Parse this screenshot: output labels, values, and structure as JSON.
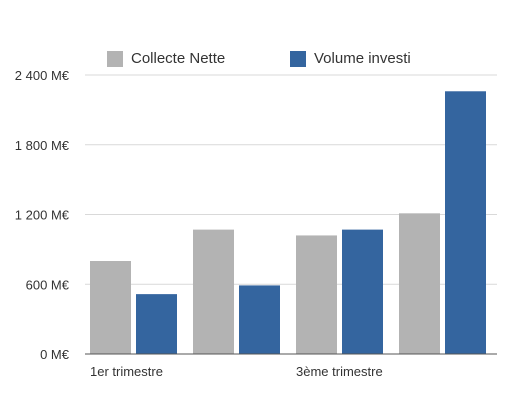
{
  "chart_data": {
    "type": "bar",
    "categories": [
      "1er trimestre",
      "",
      "3ème trimestre",
      ""
    ],
    "series": [
      {
        "name": "Collecte Nette",
        "color": "#b3b3b3",
        "values": [
          800,
          1070,
          1020,
          1210
        ]
      },
      {
        "name": "Volume investi",
        "color": "#34659f",
        "values": [
          515,
          590,
          1070,
          2260
        ]
      }
    ],
    "ylim": [
      0,
      2400
    ],
    "yticks": [
      0,
      600,
      1200,
      1800,
      2400
    ],
    "ytick_labels": [
      "0 M€",
      "600 M€",
      "1 200 M€",
      "1 800 M€",
      "2 400 M€"
    ],
    "grid": true,
    "legend_position": "top"
  }
}
